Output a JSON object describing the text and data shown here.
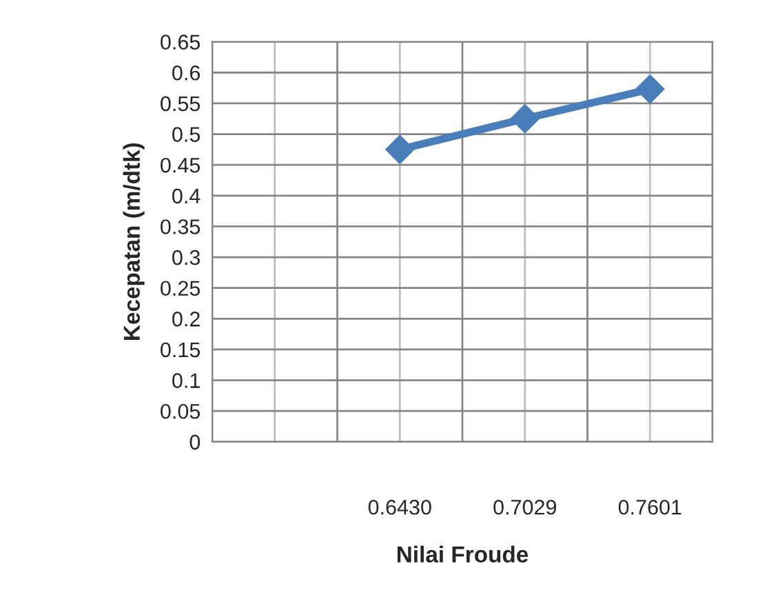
{
  "chart_data": {
    "type": "line",
    "xlabel": "Nilai Froude",
    "ylabel": "Kecepatan (m/dtk)",
    "categories": [
      null,
      "0.6430",
      "0.7029",
      "0.7601"
    ],
    "series": [
      {
        "color": "#4a7ebb",
        "values": [
          null,
          0.475,
          0.525,
          0.573
        ]
      }
    ],
    "ylim": [
      0,
      0.65
    ],
    "yticks": [
      0,
      0.05,
      0.1,
      0.15,
      0.2,
      0.25,
      0.3,
      0.35,
      0.4,
      0.45,
      0.5,
      0.55,
      0.6,
      0.65
    ],
    "grid": true,
    "marker": "diamond",
    "line_style": "solid",
    "legend": false
  }
}
